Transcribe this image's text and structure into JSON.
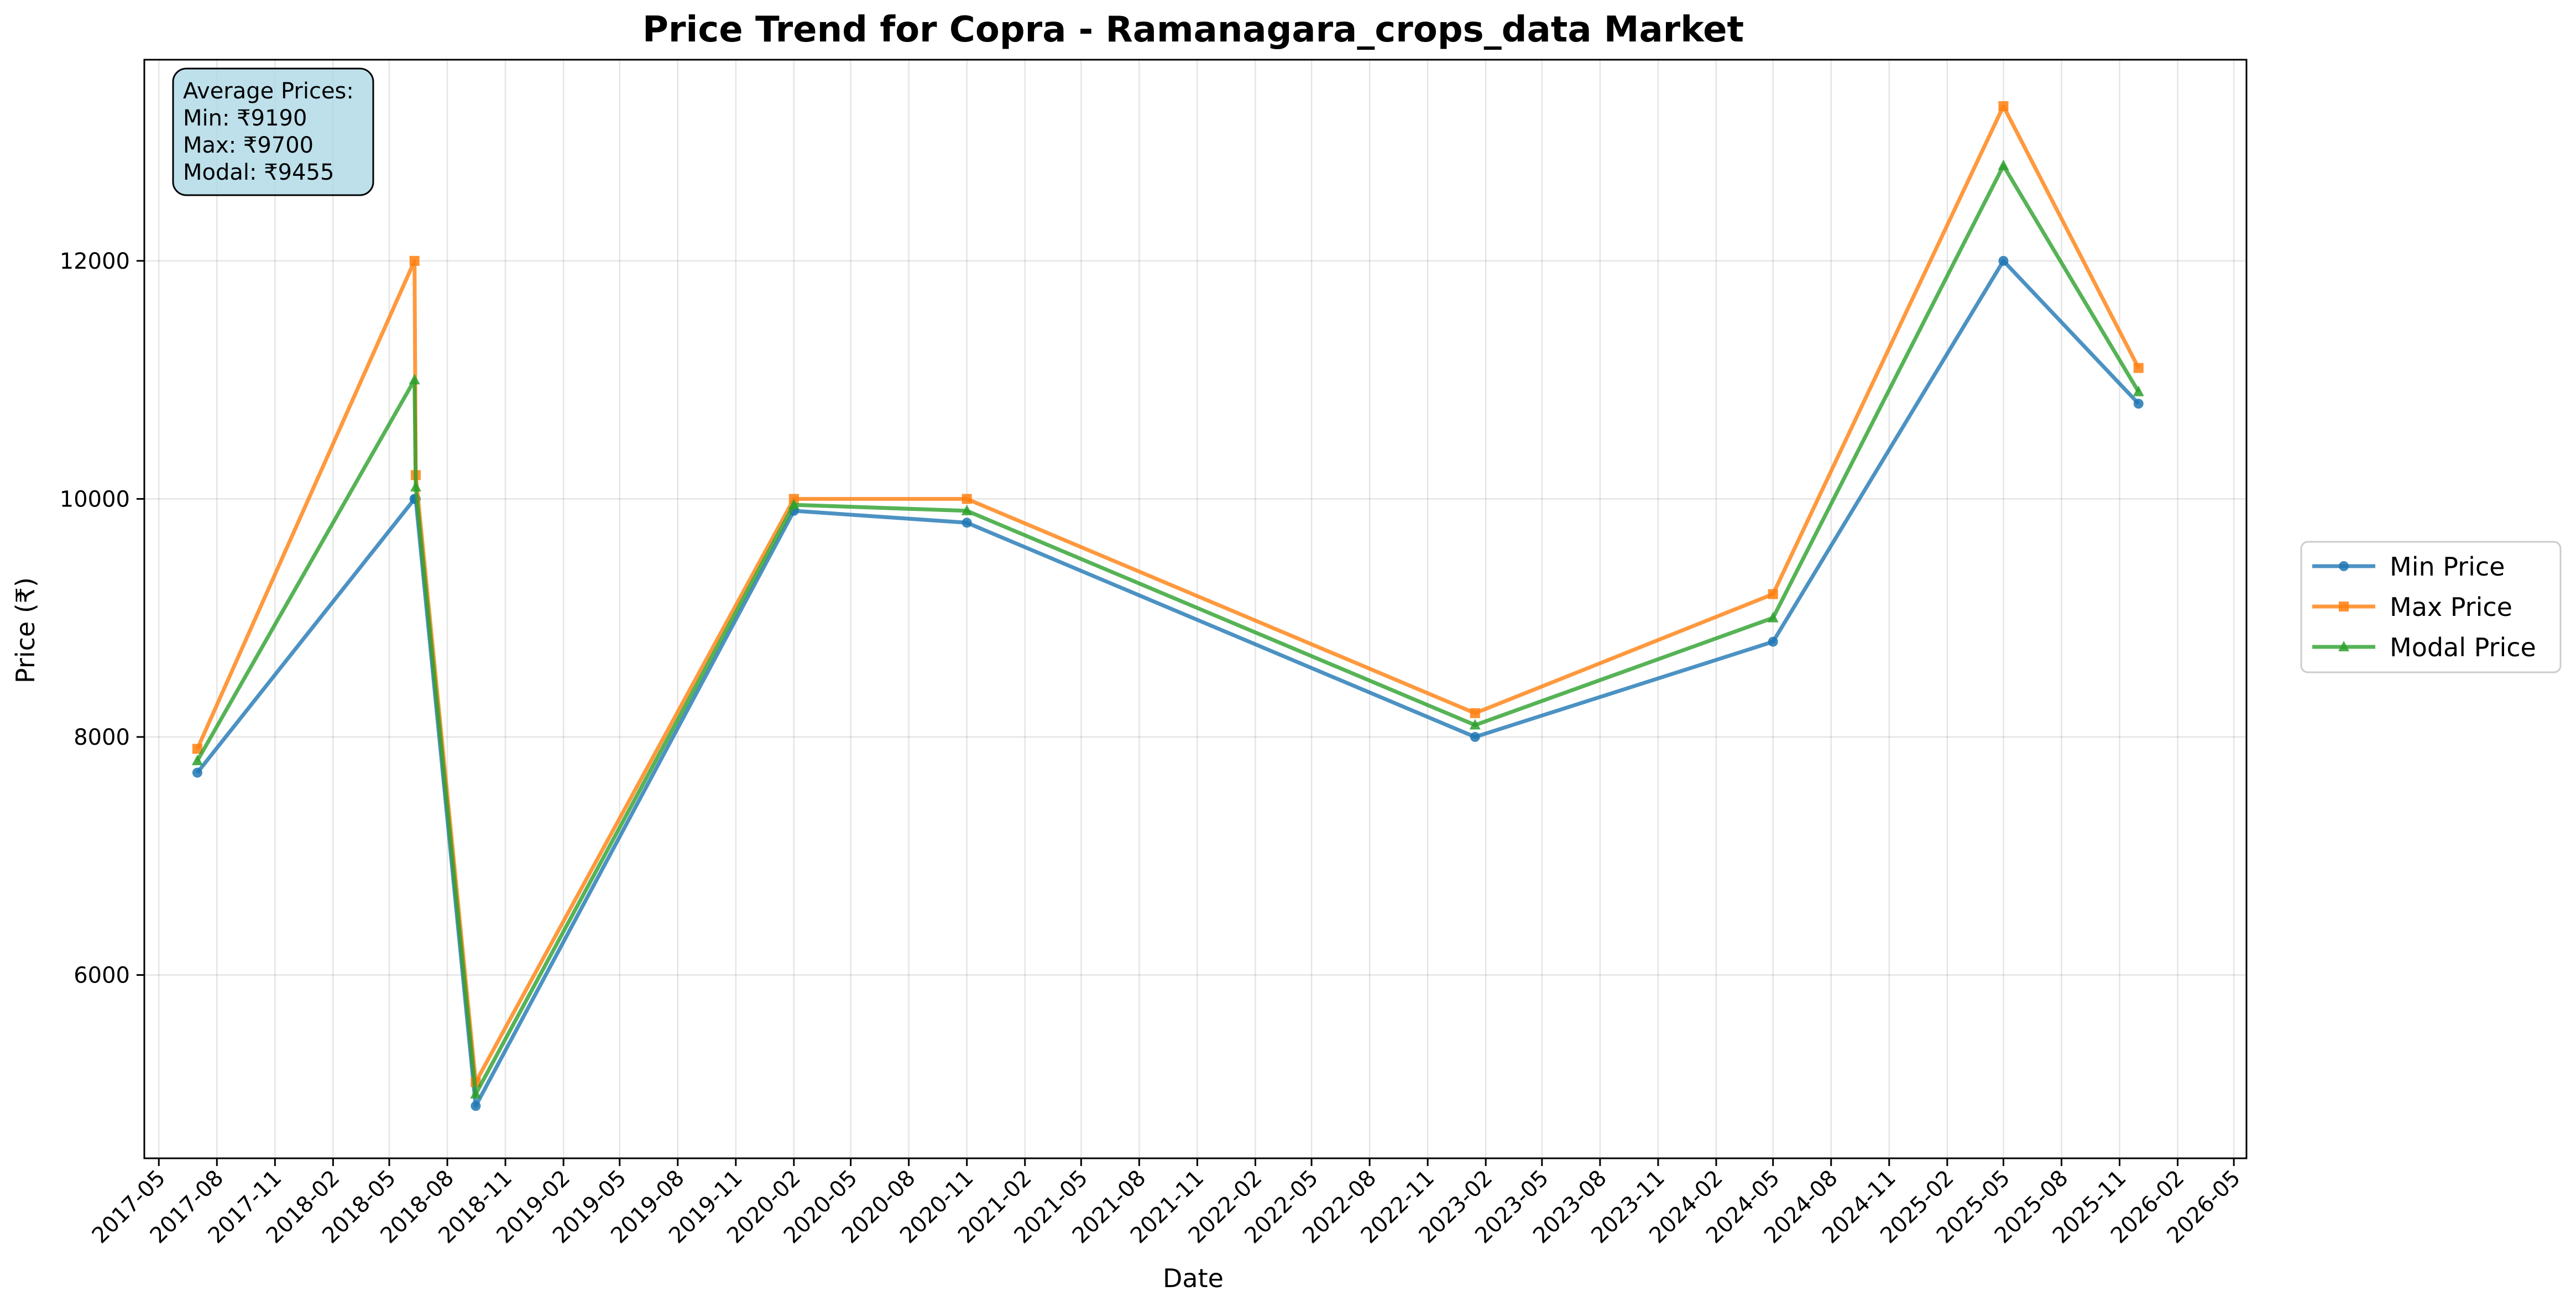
{
  "chart_data": {
    "type": "line",
    "title": "Price Trend for Copra - Ramanagara_crops_data Market",
    "xlabel": "Date",
    "ylabel": "Price (₹)",
    "x_axis_type": "date",
    "xlim": [
      "2017-04-08",
      "2026-05-21"
    ],
    "ylim": [
      4460,
      13690
    ],
    "grid": true,
    "legend_position": "outside-right",
    "x_ticks": [
      "2017-05",
      "2017-08",
      "2017-11",
      "2018-02",
      "2018-05",
      "2018-08",
      "2018-11",
      "2019-02",
      "2019-05",
      "2019-08",
      "2019-11",
      "2020-02",
      "2020-05",
      "2020-08",
      "2020-11",
      "2021-02",
      "2021-05",
      "2021-08",
      "2021-11",
      "2022-02",
      "2022-05",
      "2022-08",
      "2022-11",
      "2023-02",
      "2023-05",
      "2023-08",
      "2023-11",
      "2024-02",
      "2024-05",
      "2024-08",
      "2024-11",
      "2025-02",
      "2025-05",
      "2025-08",
      "2025-11",
      "2026-02",
      "2026-05"
    ],
    "y_ticks": [
      6000,
      8000,
      10000,
      12000
    ],
    "x": [
      "2017-07-01",
      "2018-06-10",
      "2018-06-12",
      "2018-09-15",
      "2020-02-01",
      "2020-11-01",
      "2023-01-15",
      "2024-05-01",
      "2025-05-01",
      "2025-12-01"
    ],
    "series": [
      {
        "name": "Min Price",
        "color": "#1f77b4",
        "marker": "circle",
        "values": [
          7700,
          10000,
          10000,
          4900,
          9900,
          9800,
          8000,
          8800,
          12000,
          10800
        ]
      },
      {
        "name": "Max Price",
        "color": "#ff7f0e",
        "marker": "square",
        "values": [
          7900,
          12000,
          10200,
          5100,
          10000,
          10000,
          8200,
          9200,
          13300,
          11100
        ]
      },
      {
        "name": "Modal Price",
        "color": "#2ca02c",
        "marker": "triangle",
        "values": [
          7800,
          11000,
          10100,
          5000,
          9950,
          9900,
          8100,
          9000,
          12800,
          10900
        ]
      }
    ],
    "annotation": {
      "heading": "Average Prices:",
      "lines": [
        "Min: ₹9190",
        "Max: ₹9700",
        "Modal: ₹9455"
      ]
    }
  }
}
